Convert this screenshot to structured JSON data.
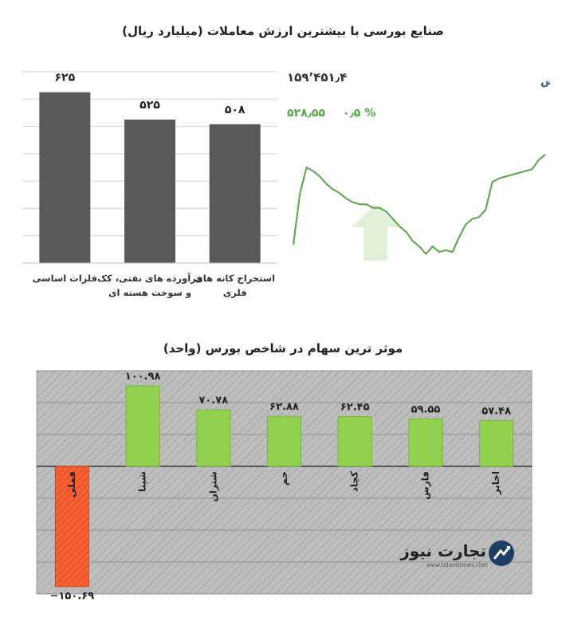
{
  "top_title": "صنایع بورسی با بیشترین ارزش معاملات  (میلیارد ریال)",
  "bottom_title": "موثر ترین سهام در شاخص بورس (واحد)",
  "index_panel": {
    "title": "کل بورس",
    "value": "۱۵۹٬۴۵۱٫۴",
    "change": "۵۲۸٫۵۵",
    "change_pct": "۰٫۵ %"
  },
  "colors": {
    "bar_gray": "#595959",
    "line_green": "#5aa24c",
    "arrow_green": "#e2efd9",
    "pos_bar": "#92d050",
    "neg_bar": "#f0582a",
    "panel_bg": "#b9b9b9"
  },
  "chart_data": [
    {
      "type": "bar",
      "categories": [
        "فلزات اساسی",
        "فرآورده های نفتی، کک و سوخت هسته ای",
        "استخراج کانه های فلزی"
      ],
      "category_lines": [
        [
          "فلزات اساسی"
        ],
        [
          "فرآورده های نفتی، کک",
          "و سوخت هسته ای"
        ],
        [
          "استخراج کانه های",
          "فلزی"
        ]
      ],
      "values": [
        625,
        525,
        508
      ],
      "value_labels": [
        "۶۲۵",
        "۵۲۵",
        "۵۰۸"
      ],
      "ylim": [
        0,
        700
      ],
      "grid": true
    },
    {
      "type": "line",
      "title": "کل بورس",
      "values": [
        40,
        68,
        82,
        80,
        77,
        73,
        70,
        68,
        65,
        63,
        62,
        62,
        60,
        60,
        58,
        54,
        50,
        47,
        42,
        39,
        35,
        39,
        36,
        37,
        36,
        44,
        51,
        54,
        55,
        59,
        74,
        76,
        77,
        78,
        79,
        80,
        81,
        86,
        89
      ],
      "ylim": [
        30,
        95
      ]
    },
    {
      "type": "bar",
      "categories": [
        "فملی",
        "شپنا",
        "شتران",
        "جم",
        "کچاد",
        "فارس",
        "اخابر"
      ],
      "values": [
        -150.69,
        100.98,
        70.78,
        62.88,
        62.45,
        59.55,
        57.48
      ],
      "value_labels": [
        "−۱۵۰.۶۹",
        "۱۰۰.۹۸",
        "۷۰.۷۸",
        "۶۲.۸۸",
        "۶۲.۴۵",
        "۵۹.۵۵",
        "۵۷.۴۸"
      ],
      "ylim": [
        -160,
        120
      ],
      "grid": true
    }
  ],
  "logo": {
    "brand": "تجارت نیوز",
    "url": "www.tejaratnews.com"
  }
}
